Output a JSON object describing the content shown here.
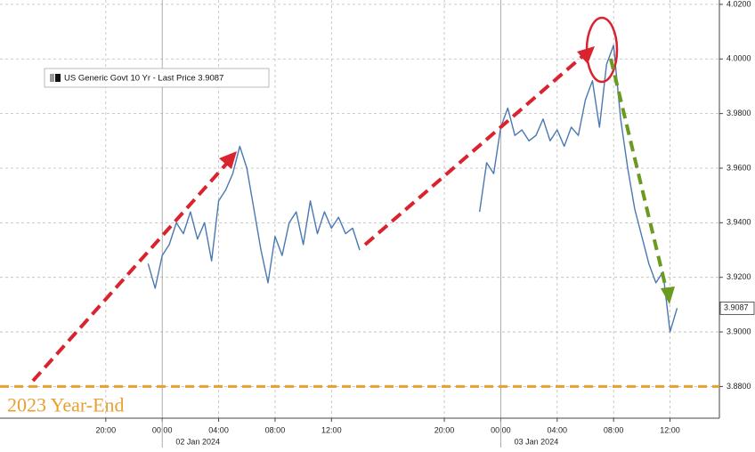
{
  "chart_data": {
    "type": "line",
    "legend_text": "US Generic Govt 10 Yr - Last Price 3.9087",
    "last_price_label": "3.9087",
    "last_price": 3.9087,
    "x": [
      "2024-01-01T23:00",
      "2024-01-01T23:30",
      "2024-01-02T00:00",
      "2024-01-02T00:30",
      "2024-01-02T01:00",
      "2024-01-02T01:30",
      "2024-01-02T02:00",
      "2024-01-02T02:30",
      "2024-01-02T03:00",
      "2024-01-02T03:30",
      "2024-01-02T04:00",
      "2024-01-02T04:30",
      "2024-01-02T05:00",
      "2024-01-02T05:30",
      "2024-01-02T06:00",
      "2024-01-02T06:30",
      "2024-01-02T07:00",
      "2024-01-02T07:30",
      "2024-01-02T08:00",
      "2024-01-02T08:30",
      "2024-01-02T09:00",
      "2024-01-02T09:30",
      "2024-01-02T10:00",
      "2024-01-02T10:30",
      "2024-01-02T11:00",
      "2024-01-02T11:30",
      "2024-01-02T12:00",
      "2024-01-02T12:30",
      "2024-01-02T13:00",
      "2024-01-02T13:30",
      "2024-01-02T14:00",
      "2024-01-02T18:00",
      "2024-01-02T22:30",
      "2024-01-02T23:00",
      "2024-01-02T23:30",
      "2024-01-03T00:00",
      "2024-01-03T00:30",
      "2024-01-03T01:00",
      "2024-01-03T01:30",
      "2024-01-03T02:00",
      "2024-01-03T02:30",
      "2024-01-03T03:00",
      "2024-01-03T03:30",
      "2024-01-03T04:00",
      "2024-01-03T04:30",
      "2024-01-03T05:00",
      "2024-01-03T05:30",
      "2024-01-03T06:00",
      "2024-01-03T06:30",
      "2024-01-03T07:00",
      "2024-01-03T07:30",
      "2024-01-03T08:00",
      "2024-01-03T08:30",
      "2024-01-03T09:00",
      "2024-01-03T09:30",
      "2024-01-03T10:00",
      "2024-01-03T10:30",
      "2024-01-03T11:00",
      "2024-01-03T11:30",
      "2024-01-03T12:00",
      "2024-01-03T12:30"
    ],
    "series": [
      {
        "name": "US Generic Govt 10 Yr",
        "color": "#4a78b0",
        "values": [
          3.925,
          3.916,
          3.928,
          3.932,
          3.94,
          3.936,
          3.944,
          3.934,
          3.94,
          3.926,
          3.948,
          3.952,
          3.958,
          3.968,
          3.96,
          3.945,
          3.93,
          3.918,
          3.935,
          3.928,
          3.94,
          3.944,
          3.932,
          3.948,
          3.936,
          3.944,
          3.938,
          3.942,
          3.936,
          3.938,
          3.93,
          null,
          3.944,
          3.962,
          3.958,
          3.975,
          3.982,
          3.972,
          3.974,
          3.97,
          3.972,
          3.978,
          3.97,
          3.974,
          3.968,
          3.975,
          3.972,
          3.985,
          3.992,
          3.975,
          3.998,
          4.005,
          3.978,
          3.96,
          3.945,
          3.935,
          3.925,
          3.918,
          3.922,
          3.9,
          3.9087
        ]
      }
    ],
    "xlim": [
      "2024-01-01T12:30",
      "2024-01-03T15:30"
    ],
    "xticks": [
      {
        "value": "2024-01-01T20:00",
        "label": "20:00"
      },
      {
        "value": "2024-01-02T00:00",
        "label": "00:00"
      },
      {
        "value": "2024-01-02T04:00",
        "label": "04:00"
      },
      {
        "value": "2024-01-02T08:00",
        "label": "08:00"
      },
      {
        "value": "2024-01-02T12:00",
        "label": "12:00"
      },
      {
        "value": "2024-01-02T20:00",
        "label": "20:00"
      },
      {
        "value": "2024-01-03T00:00",
        "label": "00:00"
      },
      {
        "value": "2024-01-03T04:00",
        "label": "04:00"
      },
      {
        "value": "2024-01-03T08:00",
        "label": "08:00"
      },
      {
        "value": "2024-01-03T12:00",
        "label": "12:00"
      }
    ],
    "day_labels": [
      {
        "value": "2024-01-02T00:00",
        "label": "02 Jan 2024"
      },
      {
        "value": "2024-01-03T00:00",
        "label": "03 Jan 2024"
      }
    ],
    "ylim": [
      3.8684,
      4.0216
    ],
    "yticks": [
      {
        "value": 3.88,
        "label": "3.8800"
      },
      {
        "value": 3.9,
        "label": "3.9000"
      },
      {
        "value": 3.92,
        "label": "3.9200"
      },
      {
        "value": 3.94,
        "label": "3.9400"
      },
      {
        "value": 3.96,
        "label": "3.9600"
      },
      {
        "value": 3.98,
        "label": "3.9800"
      },
      {
        "value": 4.0,
        "label": "4.0000"
      },
      {
        "value": 4.02,
        "label": "4.0200"
      }
    ],
    "grid": true,
    "reference_line": {
      "value": 3.88,
      "label": "2023 Year-End",
      "color": "#e8a030"
    }
  }
}
